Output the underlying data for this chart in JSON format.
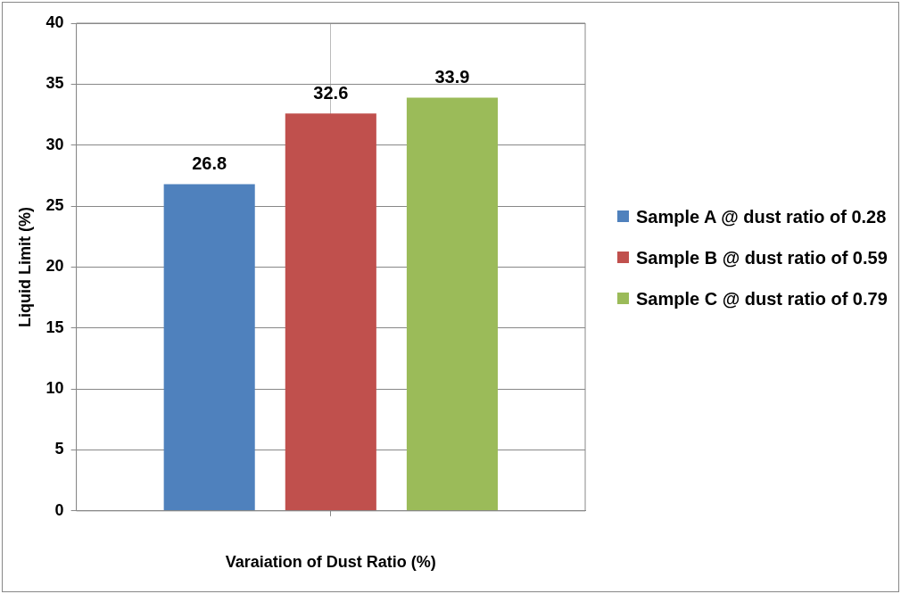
{
  "chart_data": {
    "type": "bar",
    "xlabel": "Varaiation of Dust Ratio (%)",
    "ylabel": "Liquid Limit (%)",
    "categories": [
      null
    ],
    "series": [
      {
        "name": "Sample A @ dust ratio of 0.28",
        "color": "#4f81bd",
        "values": [
          26.8
        ]
      },
      {
        "name": "Sample B @ dust ratio of 0.59",
        "color": "#c0504d",
        "values": [
          32.6
        ]
      },
      {
        "name": "Sample C @ dust ratio of 0.79",
        "color": "#9bbb59",
        "values": [
          33.9
        ]
      }
    ],
    "ylim": [
      0,
      40
    ],
    "yticks": [
      0,
      5,
      10,
      15,
      20,
      25,
      30,
      35,
      40
    ],
    "grid": true,
    "legend": "right",
    "data_labels": true
  }
}
